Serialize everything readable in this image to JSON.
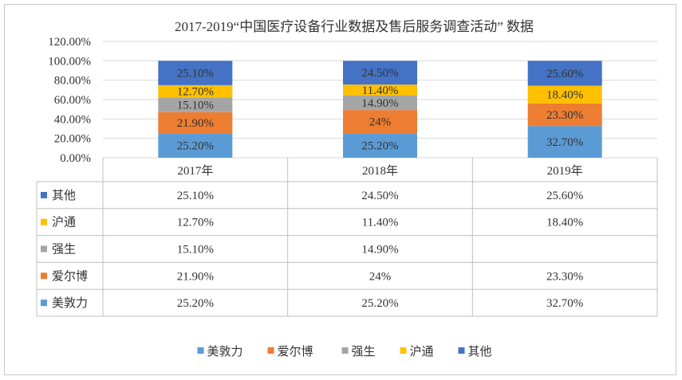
{
  "chart_data": {
    "type": "bar",
    "stacked": true,
    "title": "2017-2019“中国医疗设备行业数据及售后服务调查活动” 数据",
    "categories": [
      "2017年",
      "2018年",
      "2019年"
    ],
    "series": [
      {
        "name": "美敦力",
        "color": "#5B9BD5",
        "values": [
          25.2,
          25.2,
          32.7
        ],
        "labels": [
          "25.20%",
          "25.20%",
          "32.70%"
        ]
      },
      {
        "name": "爱尔博",
        "color": "#ED7D31",
        "values": [
          21.9,
          24,
          23.3
        ],
        "labels": [
          "21.90%",
          "24%",
          "23.30%"
        ]
      },
      {
        "name": "强生",
        "color": "#A5A5A5",
        "values": [
          15.1,
          14.9,
          null
        ],
        "labels": [
          "15.10%",
          "14.90%",
          ""
        ]
      },
      {
        "name": "沪通",
        "color": "#FFC000",
        "values": [
          12.7,
          11.4,
          18.4
        ],
        "labels": [
          "12.70%",
          "11.40%",
          "18.40%"
        ]
      },
      {
        "name": "其他",
        "color": "#4472C4",
        "values": [
          25.1,
          24.5,
          25.6
        ],
        "labels": [
          "25.10%",
          "24.50%",
          "25.60%"
        ]
      }
    ],
    "ylim": [
      0,
      120
    ],
    "yticks": [
      "0.00%",
      "20.00%",
      "40.00%",
      "60.00%",
      "80.00%",
      "100.00%",
      "120.00%"
    ],
    "data_table": true,
    "legend_position": "bottom",
    "grid": true
  }
}
